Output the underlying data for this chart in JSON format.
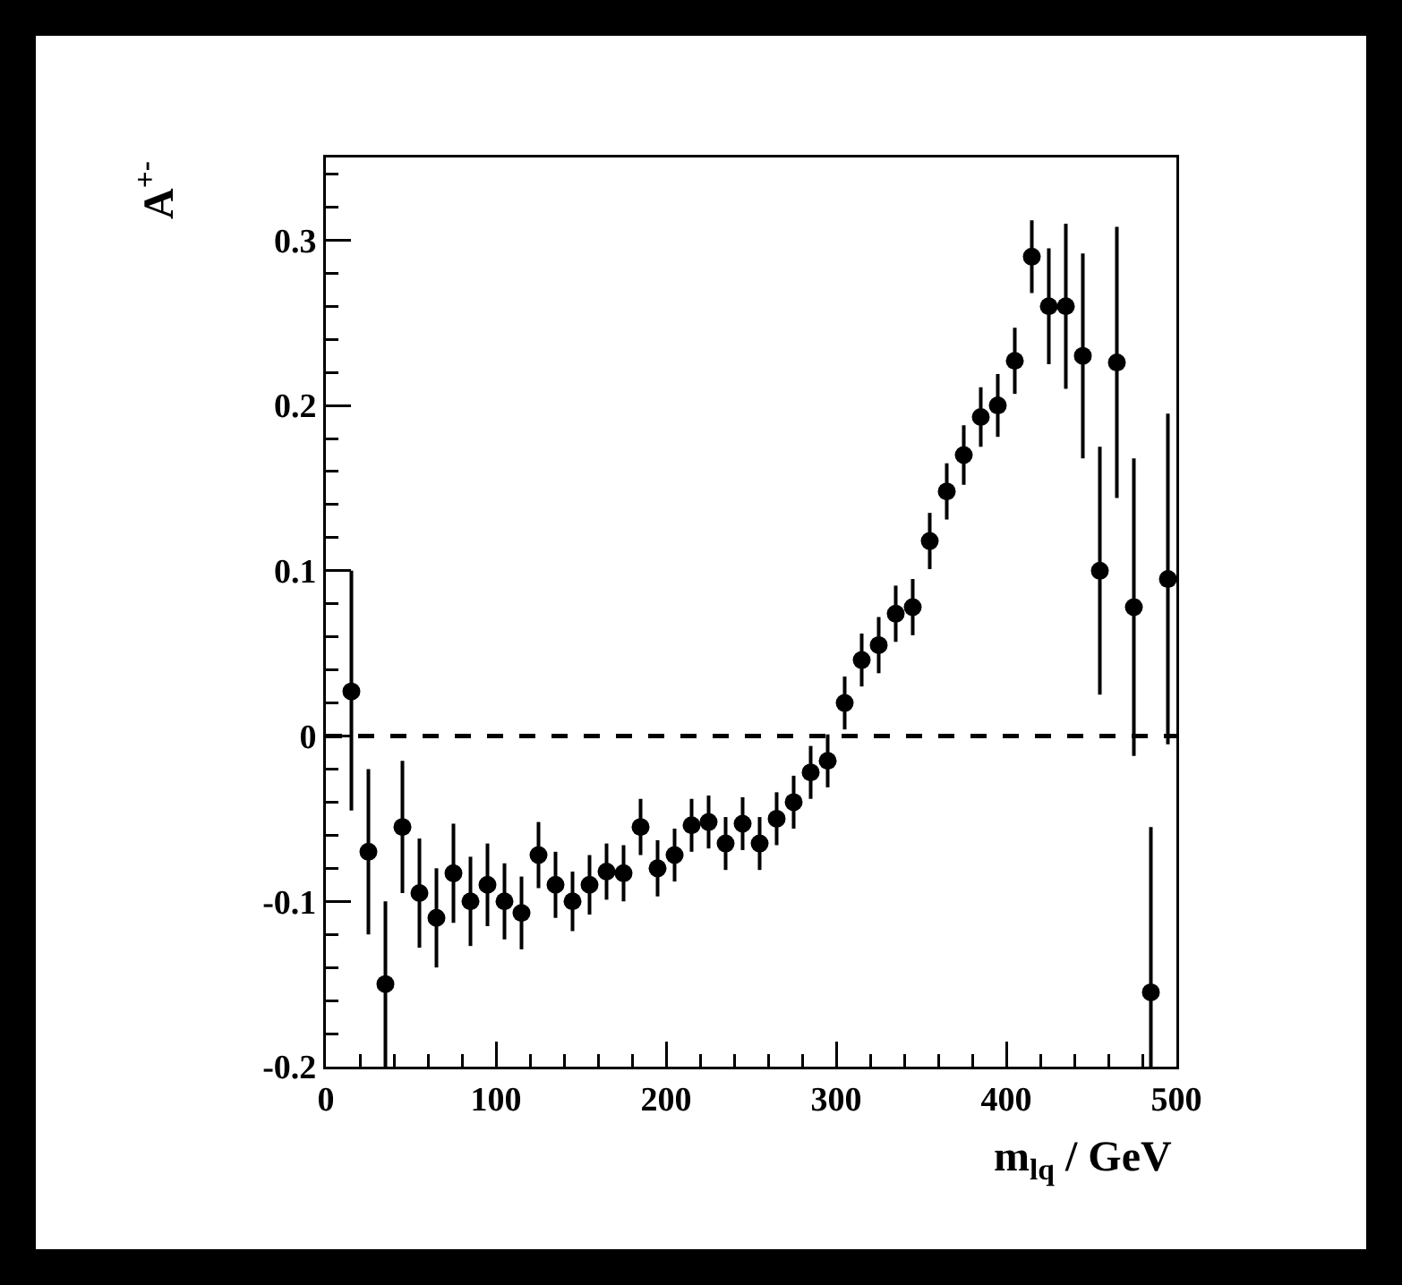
{
  "chart_data": {
    "type": "scatter",
    "xlabel": "m$_{lq}$ / GeV",
    "ylabel": "A$^{+-}$",
    "x": [
      15,
      25,
      35,
      45,
      55,
      65,
      75,
      85,
      95,
      105,
      115,
      125,
      135,
      145,
      155,
      165,
      175,
      185,
      195,
      205,
      215,
      225,
      235,
      245,
      255,
      265,
      275,
      285,
      295,
      305,
      315,
      325,
      335,
      345,
      355,
      365,
      375,
      385,
      395,
      405,
      415,
      425,
      435,
      445,
      455,
      465,
      475,
      485,
      495
    ],
    "values": [
      0.027,
      -0.07,
      -0.15,
      -0.055,
      -0.095,
      -0.11,
      -0.083,
      -0.1,
      -0.09,
      -0.1,
      -0.107,
      -0.072,
      -0.09,
      -0.1,
      -0.09,
      -0.082,
      -0.083,
      -0.055,
      -0.08,
      -0.072,
      -0.054,
      -0.052,
      -0.065,
      -0.053,
      -0.065,
      -0.05,
      -0.04,
      -0.022,
      -0.015,
      0.02,
      0.046,
      0.055,
      0.074,
      0.078,
      0.118,
      0.148,
      0.17,
      0.193,
      0.2,
      0.227,
      0.29,
      0.26,
      0.26,
      0.23,
      0.1,
      0.226,
      0.078,
      -0.155,
      0.095
    ],
    "errors": [
      [
        -0.045,
        0.1
      ],
      0.05,
      0.05,
      0.04,
      0.033,
      0.03,
      0.03,
      0.027,
      0.025,
      0.023,
      0.022,
      0.02,
      0.02,
      0.018,
      0.018,
      0.017,
      0.017,
      0.017,
      0.017,
      0.016,
      0.016,
      0.016,
      0.016,
      0.016,
      0.016,
      0.016,
      0.016,
      0.016,
      0.016,
      0.016,
      0.016,
      0.017,
      0.017,
      0.017,
      0.017,
      0.017,
      0.018,
      0.018,
      0.019,
      0.02,
      0.022,
      0.035,
      0.05,
      0.062,
      0.075,
      0.082,
      0.09,
      0.1,
      0.1
    ],
    "color": "#000000",
    "marker": "circle",
    "xlim": [
      0,
      500
    ],
    "ylim": [
      -0.2,
      0.35
    ],
    "xticks": [
      0,
      {
        "value": 20,
        "label": null
      },
      {
        "value": 40,
        "label": null
      },
      {
        "value": 60,
        "label": null
      },
      {
        "value": 80,
        "label": null
      },
      100,
      {
        "value": 120,
        "label": null
      },
      {
        "value": 140,
        "label": null
      },
      {
        "value": 160,
        "label": null
      },
      {
        "value": 180,
        "label": null
      },
      200,
      {
        "value": 220,
        "label": null
      },
      {
        "value": 240,
        "label": null
      },
      {
        "value": 260,
        "label": null
      },
      {
        "value": 280,
        "label": null
      },
      300,
      {
        "value": 320,
        "label": null
      },
      {
        "value": 340,
        "label": null
      },
      {
        "value": 360,
        "label": null
      },
      {
        "value": 380,
        "label": null
      },
      400,
      {
        "value": 420,
        "label": null
      },
      {
        "value": 440,
        "label": null
      },
      {
        "value": 460,
        "label": null
      },
      {
        "value": 480,
        "label": null
      },
      500
    ],
    "yticks": [
      -0.2,
      {
        "value": -0.18,
        "label": null
      },
      {
        "value": -0.16,
        "label": null
      },
      {
        "value": -0.14,
        "label": null
      },
      {
        "value": -0.12,
        "label": null
      },
      -0.1,
      {
        "value": -0.08,
        "label": null
      },
      {
        "value": -0.06,
        "label": null
      },
      {
        "value": -0.04,
        "label": null
      },
      {
        "value": -0.02,
        "label": null
      },
      0,
      {
        "value": 0.02,
        "label": null
      },
      {
        "value": 0.04,
        "label": null
      },
      {
        "value": 0.06,
        "label": null
      },
      {
        "value": 0.08,
        "label": null
      },
      0.1,
      {
        "value": 0.12,
        "label": null
      },
      {
        "value": 0.14,
        "label": null
      },
      {
        "value": 0.16,
        "label": null
      },
      {
        "value": 0.18,
        "label": null
      },
      0.2,
      {
        "value": 0.22,
        "label": null
      },
      {
        "value": 0.24,
        "label": null
      },
      {
        "value": 0.26,
        "label": null
      },
      {
        "value": 0.28,
        "label": null
      },
      0.3,
      {
        "value": 0.32,
        "label": null
      },
      {
        "value": 0.34,
        "label": null
      }
    ],
    "ref_lines": [
      {
        "axis": "y",
        "value": 0,
        "line_style": "dashed",
        "color": "#000000"
      }
    ],
    "grid": false
  }
}
